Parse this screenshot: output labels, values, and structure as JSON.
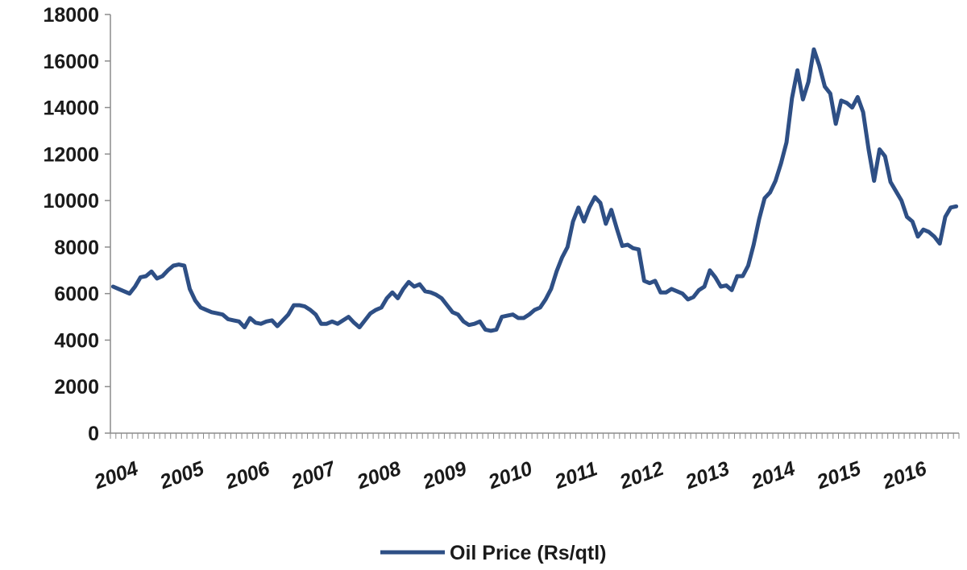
{
  "chart_data": {
    "type": "line",
    "title": "",
    "xlabel": "",
    "ylabel": "",
    "ylim": [
      0,
      18000
    ],
    "y_ticks": [
      "0",
      "2000",
      "4000",
      "6000",
      "8000",
      "10000",
      "12000",
      "14000",
      "16000",
      "18000"
    ],
    "x_tick_labels": [
      "2004",
      "2005",
      "2006",
      "2007",
      "2008",
      "2009",
      "2010",
      "2011",
      "2012",
      "2013",
      "2014",
      "2015",
      "2016"
    ],
    "grid": false,
    "legend_position": "bottom",
    "colors": {
      "series": "#2e4f85"
    },
    "series": [
      {
        "name": "Oil Price (Rs/qtl)",
        "x_label_start_year": 2004,
        "frequency": "monthly",
        "values": [
          6300,
          6200,
          6100,
          6000,
          6300,
          6700,
          6750,
          6950,
          6650,
          6750,
          7000,
          7200,
          7250,
          7200,
          6200,
          5700,
          5400,
          5300,
          5200,
          5150,
          5100,
          4900,
          4850,
          4800,
          4550,
          4950,
          4750,
          4700,
          4800,
          4850,
          4600,
          4850,
          5100,
          5500,
          5500,
          5450,
          5300,
          5100,
          4700,
          4700,
          4800,
          4700,
          4850,
          5000,
          4750,
          4550,
          4850,
          5150,
          5300,
          5400,
          5800,
          6050,
          5800,
          6200,
          6500,
          6300,
          6400,
          6100,
          6050,
          5950,
          5800,
          5500,
          5200,
          5100,
          4800,
          4650,
          4700,
          4800,
          4450,
          4400,
          4450,
          5000,
          5050,
          5100,
          4950,
          4950,
          5100,
          5300,
          5400,
          5750,
          6200,
          6950,
          7550,
          8000,
          9100,
          9700,
          9100,
          9700,
          10150,
          9900,
          9000,
          9600,
          8800,
          8050,
          8100,
          7950,
          7900,
          6550,
          6450,
          6550,
          6050,
          6050,
          6200,
          6100,
          6000,
          5750,
          5850,
          6150,
          6300,
          7000,
          6700,
          6300,
          6350,
          6150,
          6750,
          6750,
          7200,
          8100,
          9200,
          10100,
          10350,
          10850,
          11600,
          12500,
          14400,
          15600,
          14350,
          15100,
          16500,
          15800,
          14900,
          14600,
          13300,
          14300,
          14200,
          14000,
          14450,
          13800,
          12200,
          10850,
          12200,
          11900,
          10800,
          10400,
          10000,
          9300,
          9100,
          8450,
          8750,
          8650,
          8450,
          8150,
          9300,
          9700,
          9750
        ]
      }
    ]
  }
}
